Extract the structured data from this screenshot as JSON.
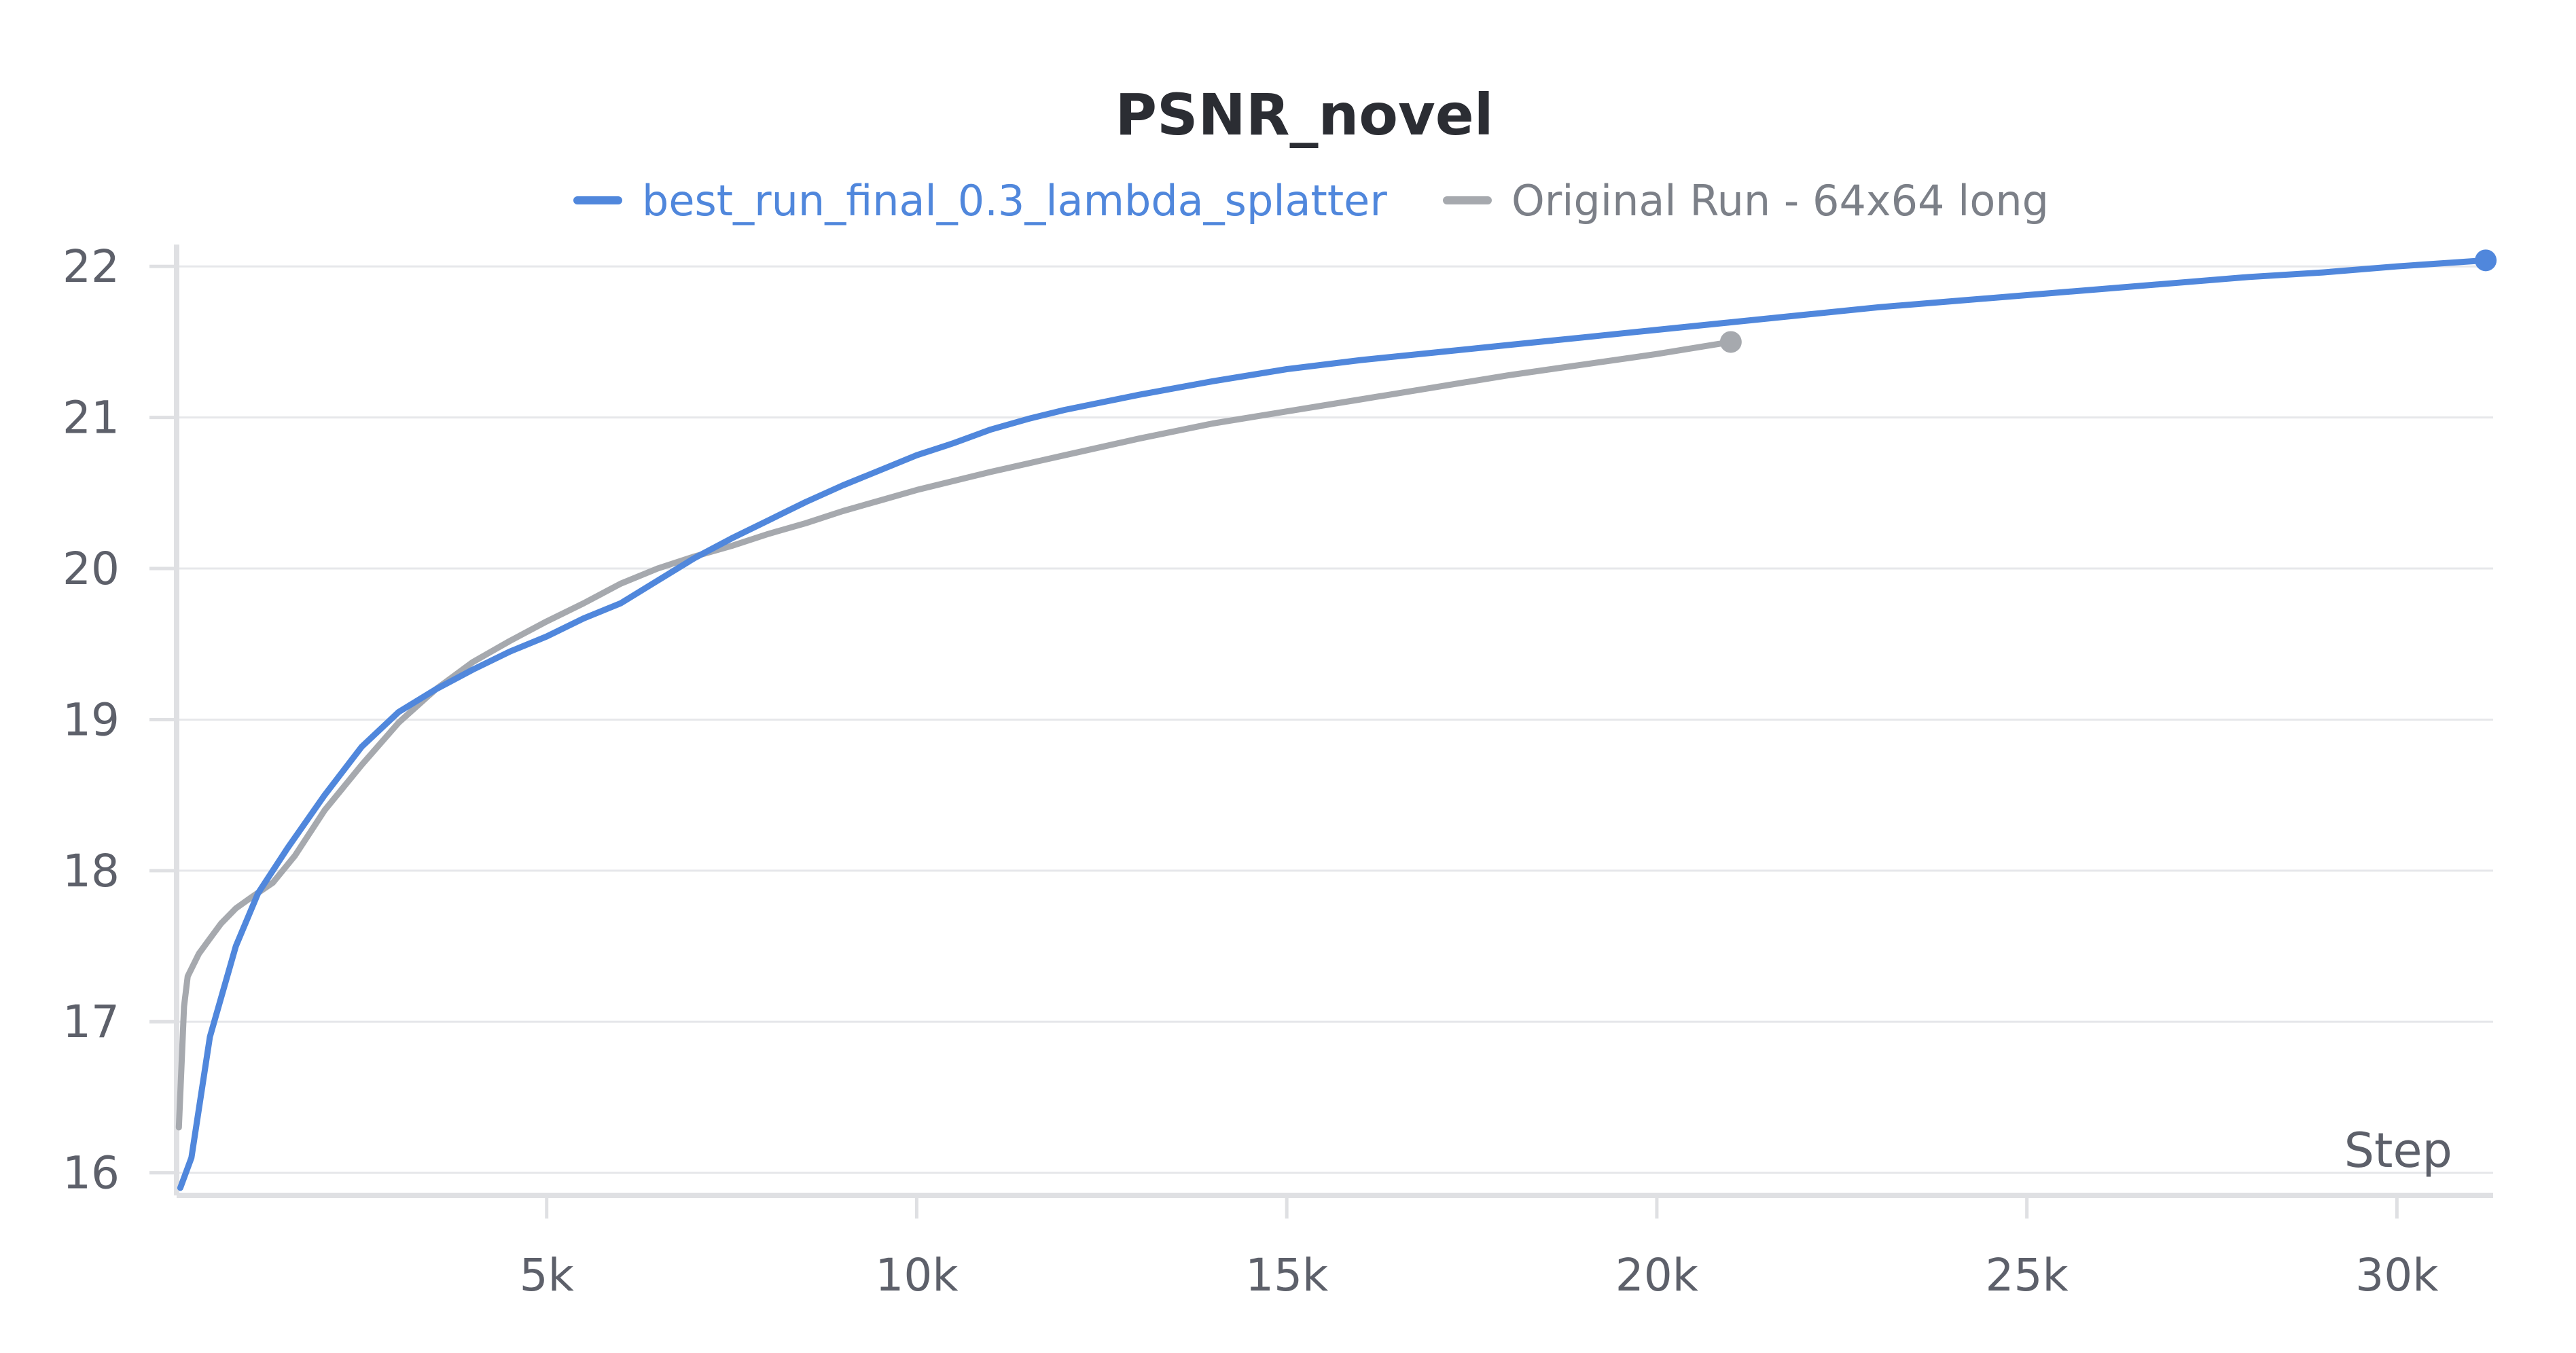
{
  "chart_data": {
    "type": "line",
    "title": "PSNR_novel",
    "xlabel": "Step",
    "ylabel": "",
    "xlim": [
      0,
      31300
    ],
    "ylim": [
      15.85,
      22.1
    ],
    "x_ticks": [
      5000,
      10000,
      15000,
      20000,
      25000,
      30000
    ],
    "x_tick_labels": [
      "5k",
      "10k",
      "15k",
      "20k",
      "25k",
      "30k"
    ],
    "y_ticks": [
      16,
      17,
      18,
      19,
      20,
      21,
      22
    ],
    "y_tick_labels": [
      "16",
      "17",
      "18",
      "19",
      "20",
      "21",
      "22"
    ],
    "grid": true,
    "legend_position": "top",
    "series": [
      {
        "name": "best_run_final_0.3_lambda_splatter",
        "color": "#5087dc",
        "x": [
          50,
          200,
          450,
          800,
          1100,
          1500,
          2000,
          2500,
          3000,
          3500,
          4000,
          4500,
          5000,
          5500,
          6000,
          6500,
          7000,
          7500,
          8000,
          8500,
          9000,
          9500,
          10000,
          10500,
          11000,
          11500,
          12000,
          12500,
          13000,
          14000,
          15000,
          16000,
          17000,
          18000,
          19000,
          20000,
          21000,
          22000,
          23000,
          24000,
          25000,
          26000,
          27000,
          28000,
          29000,
          30000,
          31200
        ],
        "y": [
          15.9,
          16.1,
          16.9,
          17.5,
          17.85,
          18.15,
          18.5,
          18.82,
          19.05,
          19.2,
          19.33,
          19.45,
          19.55,
          19.67,
          19.77,
          19.92,
          20.07,
          20.2,
          20.32,
          20.44,
          20.55,
          20.65,
          20.75,
          20.83,
          20.92,
          20.99,
          21.05,
          21.1,
          21.15,
          21.24,
          21.32,
          21.38,
          21.43,
          21.48,
          21.53,
          21.58,
          21.63,
          21.68,
          21.73,
          21.77,
          21.81,
          21.85,
          21.89,
          21.93,
          21.96,
          22.0,
          22.04
        ]
      },
      {
        "name": "Original Run - 64x64 long",
        "color": "#a6a9ae",
        "x": [
          30,
          100,
          150,
          300,
          450,
          600,
          800,
          1000,
          1300,
          1600,
          2000,
          2500,
          3000,
          3500,
          4000,
          4500,
          5000,
          5500,
          6000,
          6500,
          7000,
          7500,
          8000,
          8500,
          9000,
          9500,
          10000,
          11000,
          12000,
          13000,
          14000,
          15000,
          16000,
          17000,
          18000,
          19000,
          20000,
          21000
        ],
        "y": [
          16.3,
          17.1,
          17.3,
          17.45,
          17.55,
          17.65,
          17.75,
          17.82,
          17.92,
          18.1,
          18.4,
          18.7,
          18.98,
          19.2,
          19.38,
          19.52,
          19.65,
          19.77,
          19.9,
          20.0,
          20.08,
          20.15,
          20.23,
          20.3,
          20.38,
          20.45,
          20.52,
          20.64,
          20.75,
          20.86,
          20.96,
          21.04,
          21.12,
          21.2,
          21.28,
          21.35,
          21.42,
          21.5
        ]
      }
    ]
  }
}
